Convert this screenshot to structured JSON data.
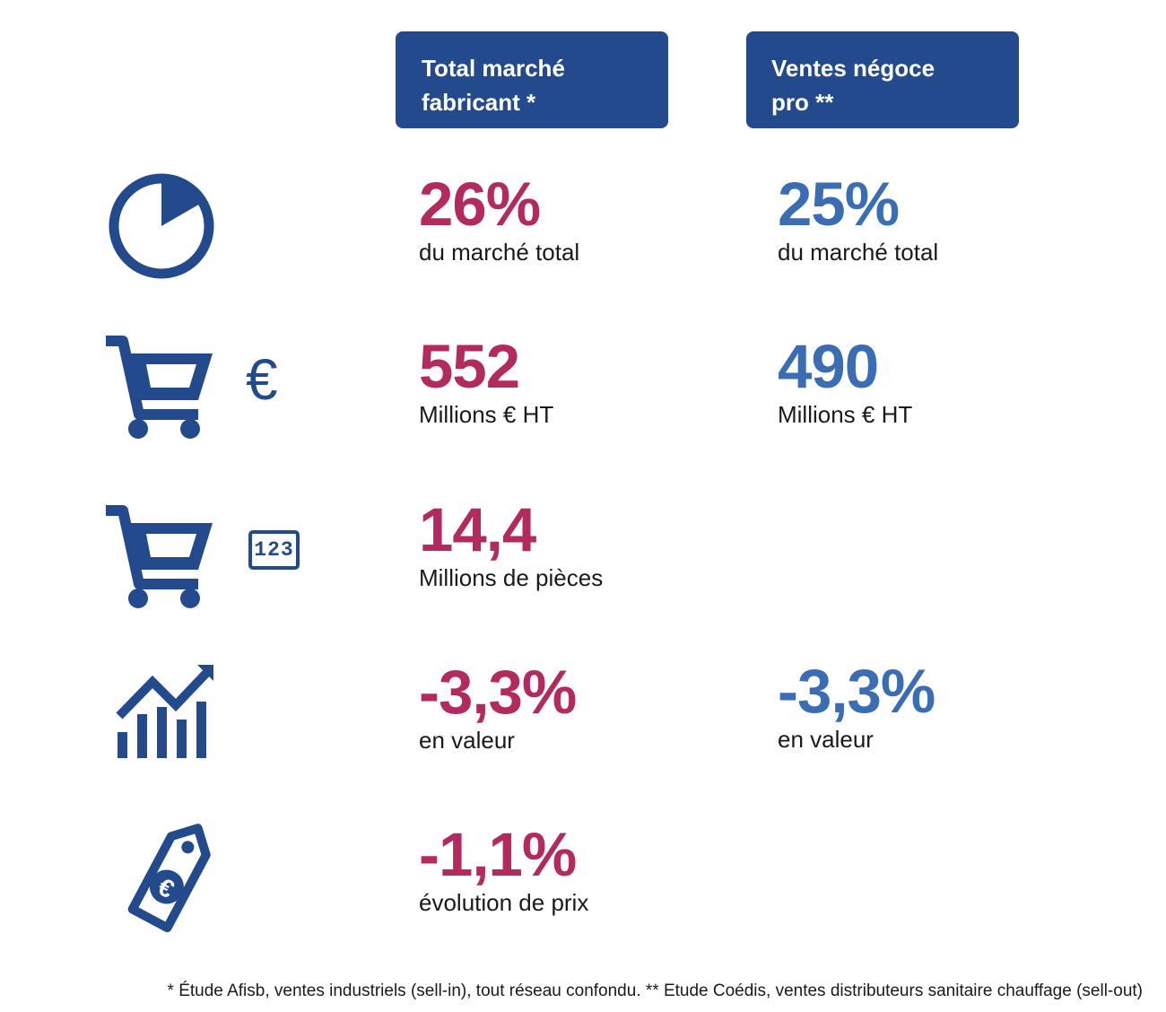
{
  "headers": {
    "col1": {
      "line1": "Total marché",
      "line2": "fabricant *"
    },
    "col2": {
      "line1": "Ventes négoce",
      "line2": "pro **"
    }
  },
  "rows": [
    {
      "icon": "pie-chart-icon",
      "col1": {
        "value": "26%",
        "label": "du marché total"
      },
      "col2": {
        "value": "25%",
        "label": "du marché total"
      }
    },
    {
      "icon": "cart-euro-icon",
      "col1": {
        "value": "552",
        "label": "Millions € HT"
      },
      "col2": {
        "value": "490",
        "label": "Millions € HT"
      }
    },
    {
      "icon": "cart-count-icon",
      "col1": {
        "value": "14,4",
        "label": "Millions de pièces"
      }
    },
    {
      "icon": "growth-chart-icon",
      "col1": {
        "value": "-3,3%",
        "label": "en valeur"
      },
      "col2": {
        "value": "-3,3%",
        "label": "en valeur"
      }
    },
    {
      "icon": "price-tag-euro-icon",
      "col1": {
        "value": "-1,1%",
        "label": "évolution de prix"
      }
    }
  ],
  "icons": {
    "euro_symbol": "€",
    "counter_text": "123"
  },
  "footnote": "* Étude Afisb, ventes industriels (sell-in), tout réseau confondu. ** Etude Coédis, ventes distributeurs sanitaire chauffage (sell-out)",
  "colors": {
    "header_bg": "#234a8d",
    "col1_accent": "#b22a5e",
    "col2_accent": "#3a6db3",
    "icon": "#234a8d"
  }
}
